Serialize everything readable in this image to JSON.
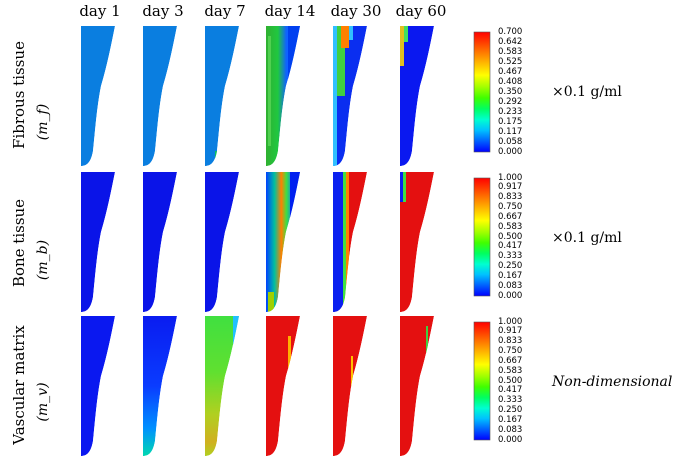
{
  "days": [
    "day 1",
    "day 3",
    "day 7",
    "day 14",
    "day 30",
    "day 60"
  ],
  "rows": [
    {
      "label": "Fibrous tissue",
      "symbol": "(m_f)",
      "unit": "×0.1 g/ml",
      "colorbar_ticks": [
        "0.700",
        "0.642",
        "0.583",
        "0.525",
        "0.467",
        "0.408",
        "0.350",
        "0.292",
        "0.233",
        "0.175",
        "0.117",
        "0.058",
        "0.000"
      ]
    },
    {
      "label": "Bone tissue",
      "symbol": "(m_b)",
      "unit": "×0.1 g/ml",
      "colorbar_ticks": [
        "1.000",
        "0.917",
        "0.833",
        "0.750",
        "0.667",
        "0.583",
        "0.500",
        "0.417",
        "0.333",
        "0.250",
        "0.167",
        "0.083",
        "0.000"
      ]
    },
    {
      "label": "Vascular matrix",
      "symbol": "(m_v)",
      "unit": "Non-dimensional",
      "colorbar_ticks": [
        "1.000",
        "0.917",
        "0.833",
        "0.750",
        "0.667",
        "0.583",
        "0.500",
        "0.417",
        "0.333",
        "0.250",
        "0.167",
        "0.083",
        "0.000"
      ]
    }
  ],
  "colormap": [
    "#0000ff",
    "#0060ff",
    "#00c0ff",
    "#00ffd0",
    "#00ff60",
    "#40ff00",
    "#a0ff00",
    "#ffff00",
    "#ffc000",
    "#ff8000",
    "#ff4000",
    "#ff0000"
  ]
}
